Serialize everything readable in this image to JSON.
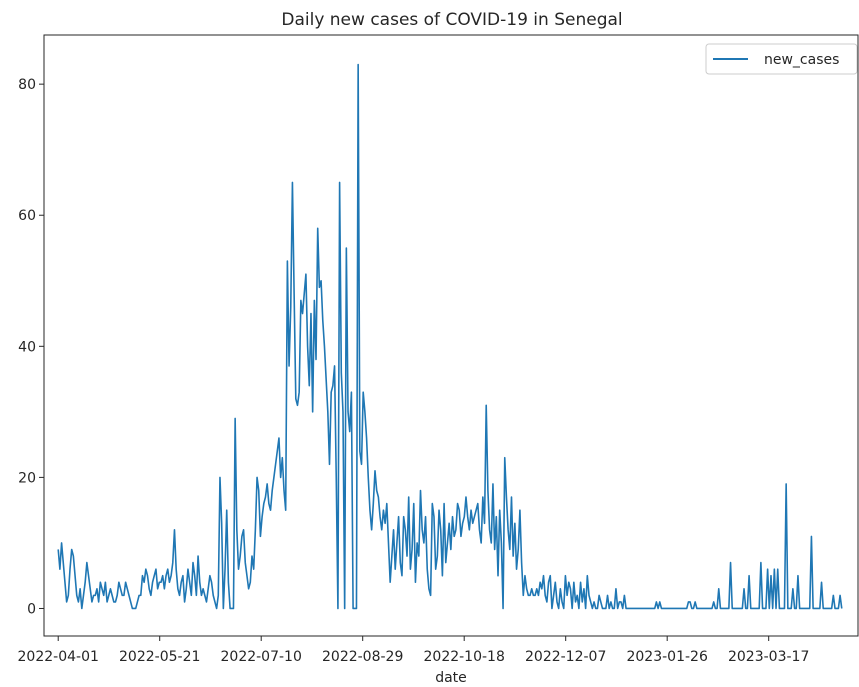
{
  "chart_data": {
    "type": "line",
    "title": "Daily new cases of COVID-19 in Senegal",
    "xlabel": "date",
    "ylabel": "",
    "x_start": "2022-04-01",
    "x_end": "2023-04-22",
    "xlim": [
      "2022-03-25",
      "2023-04-30"
    ],
    "ylim": [
      -4.2,
      87.5
    ],
    "x_ticks": [
      "2022-04-01",
      "2022-05-21",
      "2022-07-10",
      "2022-08-29",
      "2022-10-18",
      "2022-12-07",
      "2023-01-26",
      "2023-03-17"
    ],
    "y_ticks": [
      0,
      20,
      40,
      60,
      80
    ],
    "grid": false,
    "legend": {
      "position": "top-right",
      "entries": [
        "new_cases"
      ]
    },
    "series": [
      {
        "name": "new_cases",
        "color": "#1f77b4",
        "values": [
          9,
          6,
          10,
          7,
          4,
          1,
          2,
          6,
          9,
          8,
          5,
          2,
          1,
          3,
          0,
          2,
          4,
          7,
          5,
          3,
          1,
          2,
          2,
          3,
          1,
          4,
          3,
          2,
          4,
          1,
          2,
          3,
          2,
          1,
          1,
          2,
          4,
          3,
          2,
          2,
          4,
          3,
          2,
          1,
          0,
          0,
          0,
          1,
          2,
          2,
          5,
          4,
          6,
          5,
          3,
          2,
          4,
          5,
          6,
          3,
          4,
          4,
          5,
          3,
          5,
          6,
          4,
          5,
          7,
          12,
          6,
          3,
          2,
          4,
          5,
          1,
          3,
          6,
          4,
          2,
          7,
          5,
          2,
          8,
          4,
          2,
          3,
          2,
          1,
          3,
          5,
          4,
          2,
          1,
          0,
          2,
          20,
          13,
          0,
          6,
          15,
          4,
          0,
          0,
          0,
          29,
          12,
          6,
          8,
          11,
          12,
          7,
          5,
          3,
          4,
          8,
          6,
          12,
          20,
          18,
          11,
          14,
          16,
          17,
          19,
          16,
          15,
          18,
          20,
          22,
          24,
          26,
          20,
          23,
          18,
          15,
          53,
          37,
          46,
          65,
          48,
          32,
          31,
          33,
          47,
          45,
          48,
          51,
          40,
          34,
          45,
          30,
          47,
          38,
          58,
          49,
          50,
          44,
          40,
          35,
          30,
          22,
          33,
          34,
          37,
          20,
          0,
          65,
          36,
          30,
          0,
          55,
          30,
          27,
          33,
          0,
          0,
          0,
          83,
          24,
          22,
          33,
          30,
          26,
          20,
          15,
          12,
          16,
          21,
          18,
          17,
          14,
          12,
          15,
          13,
          16,
          10,
          4,
          8,
          12,
          6,
          10,
          14,
          7,
          5,
          14,
          12,
          8,
          17,
          6,
          9,
          16,
          4,
          10,
          8,
          18,
          12,
          10,
          14,
          6,
          3,
          2,
          16,
          14,
          6,
          8,
          15,
          12,
          5,
          16,
          7,
          10,
          13,
          9,
          14,
          11,
          12,
          16,
          15,
          11,
          13,
          14,
          17,
          14,
          12,
          15,
          13,
          14,
          15,
          16,
          12,
          10,
          17,
          13,
          31,
          18,
          12,
          10,
          19,
          9,
          14,
          5,
          15,
          10,
          0,
          23,
          17,
          12,
          9,
          17,
          8,
          13,
          6,
          9,
          15,
          7,
          2,
          5,
          3,
          2,
          2,
          3,
          2,
          2,
          3,
          2,
          4,
          3,
          5,
          2,
          1,
          4,
          5,
          0,
          2,
          4,
          1,
          0,
          3,
          1,
          0,
          5,
          2,
          4,
          3,
          0,
          4,
          1,
          2,
          0,
          4,
          1,
          3,
          0,
          5,
          2,
          1,
          0,
          1,
          0,
          0,
          2,
          1,
          0,
          0,
          0,
          2,
          0,
          1,
          0,
          0,
          3,
          0,
          1,
          1,
          0,
          2,
          0,
          0,
          0,
          0,
          0,
          0,
          0,
          0,
          0,
          0,
          0,
          0,
          0,
          0,
          0,
          0,
          0,
          0,
          1,
          0,
          1,
          0,
          0,
          0,
          0,
          0,
          0,
          0,
          0,
          0,
          0,
          0,
          0,
          0,
          0,
          0,
          0,
          1,
          1,
          0,
          0,
          1,
          0,
          0,
          0,
          0,
          0,
          0,
          0,
          0,
          0,
          0,
          1,
          0,
          0,
          3,
          0,
          0,
          0,
          0,
          0,
          0,
          7,
          0,
          0,
          0,
          0,
          0,
          0,
          0,
          3,
          0,
          0,
          5,
          0,
          0,
          0,
          0,
          0,
          0,
          7,
          0,
          0,
          0,
          6,
          0,
          5,
          0,
          6,
          0,
          6,
          0,
          0,
          0,
          0,
          19,
          0,
          0,
          0,
          3,
          0,
          0,
          5,
          0,
          0,
          0,
          0,
          0,
          0,
          0,
          11,
          0,
          0,
          0,
          0,
          0,
          4,
          0,
          0,
          0,
          0,
          0,
          0,
          2,
          0,
          0,
          0,
          2,
          0
        ]
      }
    ]
  }
}
